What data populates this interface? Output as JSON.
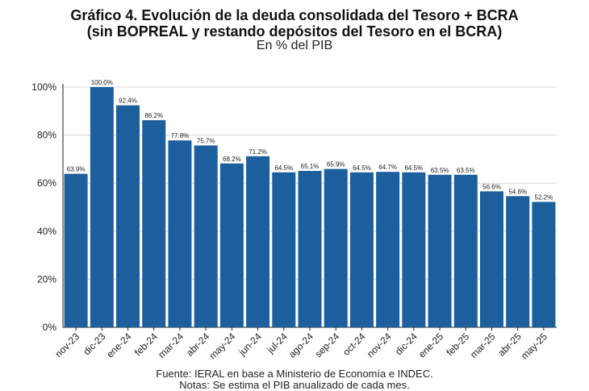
{
  "chart_data": {
    "type": "bar",
    "title_line1": "Gráfico 4. Evolución de la deuda consolidada del Tesoro + BCRA",
    "title_line2": "(sin BOPREAL y restando depósitos del Tesoro en el BCRA)",
    "subtitle": "En % del PIB",
    "categories": [
      "nov-23",
      "dic-23",
      "ene-24",
      "feb-24",
      "mar-24",
      "abr-24",
      "may-24",
      "jun-24",
      "jul-24",
      "ago-24",
      "sep-24",
      "oct-24",
      "nov-24",
      "dic-24",
      "ene-25",
      "feb-25",
      "mar-25",
      "abr-25",
      "may-25"
    ],
    "values": [
      63.9,
      100.0,
      92.4,
      86.2,
      77.8,
      75.7,
      68.2,
      71.2,
      64.5,
      65.1,
      65.9,
      64.5,
      64.7,
      64.5,
      63.5,
      63.5,
      56.6,
      54.6,
      52.2
    ],
    "value_labels": [
      "63.9%",
      "100.0%",
      "92.4%",
      "86.2%",
      "77.8%",
      "75.7%",
      "68.2%",
      "71.2%",
      "64.5%",
      "65.1%",
      "65.9%",
      "64.5%",
      "64.7%",
      "64.5%",
      "63.5%",
      "63.5%",
      "56.6%",
      "54.6%",
      "52.2%"
    ],
    "y_ticks": [
      0,
      20,
      40,
      60,
      80,
      100
    ],
    "y_tick_labels": [
      "0%",
      "20%",
      "40%",
      "60%",
      "80%",
      "100%"
    ],
    "ylim": [
      0,
      100
    ],
    "bar_color": "#1c5f9c",
    "grid": true,
    "xlabel": "",
    "ylabel": ""
  },
  "footer": {
    "source": "Fuente: IERAL en base a Ministerio de Economía e INDEC.",
    "note": "Notas: Se estima el PIB anualizado de cada mes."
  }
}
